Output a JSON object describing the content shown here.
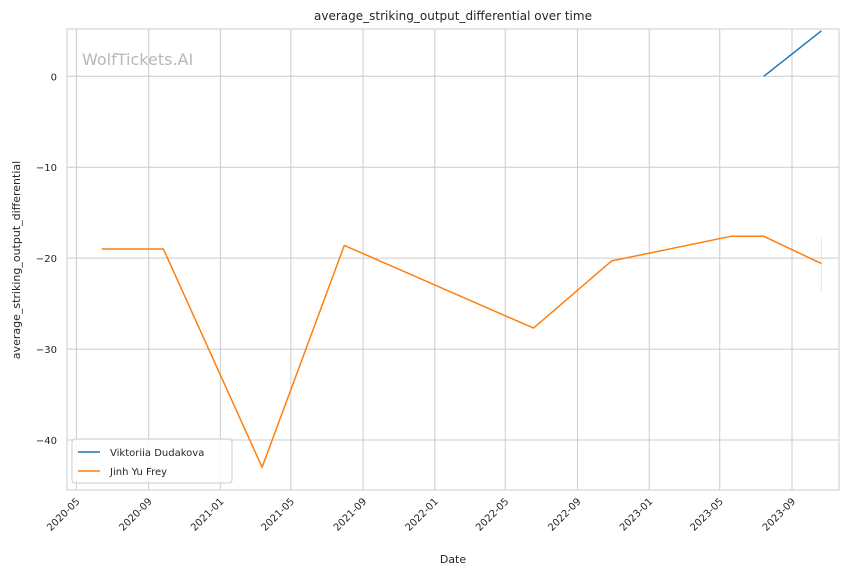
{
  "chart_data": {
    "type": "line",
    "title": "average_striking_output_differential over time",
    "xlabel": "Date",
    "ylabel": "average_striking_output_differential",
    "watermark": "WolfTickets.AI",
    "xlim": [
      "2020-04-15",
      "2023-11-20"
    ],
    "ylim": [
      -45.5,
      5.2
    ],
    "x_ticks": [
      "2020-05-01",
      "2020-09-01",
      "2021-01-01",
      "2021-05-01",
      "2021-09-01",
      "2022-01-01",
      "2022-05-01",
      "2022-09-01",
      "2023-01-01",
      "2023-05-01",
      "2023-09-01"
    ],
    "x_tick_labels": [
      "2020-05",
      "2020-09",
      "2021-01",
      "2021-05",
      "2021-09",
      "2022-01",
      "2022-05",
      "2022-09",
      "2023-01",
      "2023-05",
      "2023-09"
    ],
    "y_ticks": [
      0,
      -10,
      -20,
      -30,
      -40
    ],
    "y_tick_labels": [
      "0",
      "−10",
      "−20",
      "−30",
      "−40"
    ],
    "grid": true,
    "legend_position": "bottom-left",
    "series": [
      {
        "name": "Viktoriia Dudakova",
        "color": "#1f77b4",
        "x": [
          "2023-07-15",
          "2023-10-21"
        ],
        "y": [
          0,
          5
        ]
      },
      {
        "name": "Jinh Yu Frey",
        "color": "#ff7f0e",
        "x": [
          "2020-06-13",
          "2020-09-26",
          "2021-03-13",
          "2021-07-31",
          "2022-06-18",
          "2022-10-29",
          "2023-05-20",
          "2023-07-15",
          "2023-10-21"
        ],
        "y": [
          -19,
          -19,
          -43,
          -18.6,
          -27.7,
          -20.3,
          -17.6,
          -17.6,
          -20.6
        ]
      }
    ]
  }
}
